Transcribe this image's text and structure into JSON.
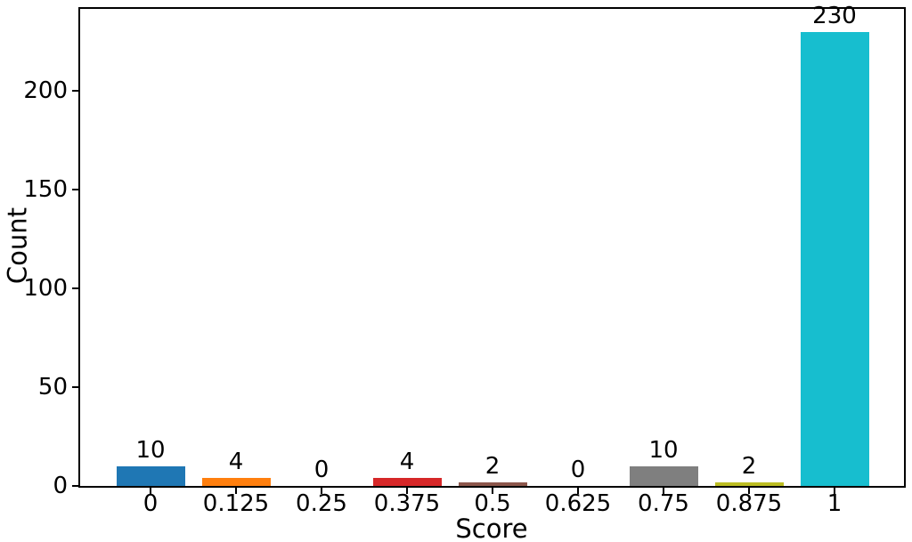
{
  "chart_data": {
    "type": "bar",
    "title": "",
    "xlabel": "Score",
    "ylabel": "Count",
    "categories": [
      "0",
      "0.125",
      "0.25",
      "0.375",
      "0.5",
      "0.625",
      "0.75",
      "0.875",
      "1"
    ],
    "values": [
      10,
      4,
      0,
      4,
      2,
      0,
      10,
      2,
      230
    ],
    "value_labels": [
      "10",
      "4",
      "0",
      "4",
      "2",
      "0",
      "10",
      "2",
      "230"
    ],
    "bar_colors": [
      "#1f77b4",
      "#ff7f0e",
      null,
      "#d62728",
      "#8c564b",
      null,
      "#7f7f7f",
      "#bcbd22",
      "#17becf"
    ],
    "yticks": [
      0,
      50,
      100,
      150,
      200
    ],
    "ylim": [
      0,
      241.5
    ],
    "grid": false,
    "legend": null,
    "axis_color": "#000000",
    "text_color": "#000000",
    "background_color": "#ffffff"
  }
}
